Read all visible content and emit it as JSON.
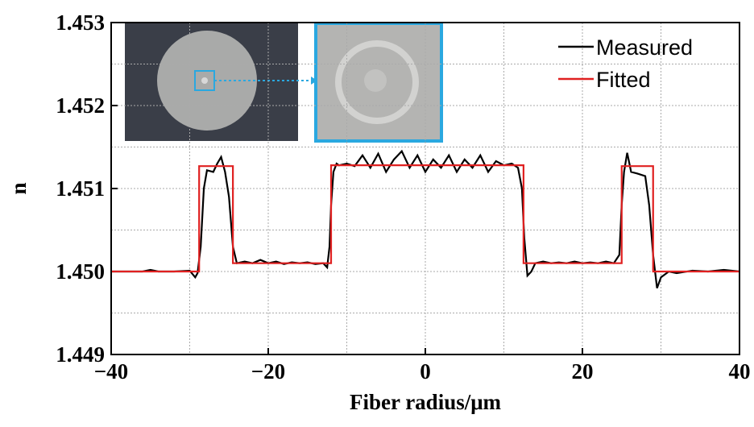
{
  "chart_data": {
    "type": "line",
    "xlabel": "Fiber radius/μm",
    "ylabel": "n",
    "xlim": [
      -40,
      40
    ],
    "ylim": [
      1.449,
      1.453
    ],
    "xticks": [
      {
        "value": -40,
        "label": "−40"
      },
      {
        "value": -20,
        "label": "−20"
      },
      0,
      20,
      40
    ],
    "yticks": [
      1.449,
      {
        "value": 1.45,
        "label": "1.450"
      },
      1.451,
      1.452,
      1.453
    ],
    "xminorticks": [
      -30,
      -10,
      10,
      30
    ],
    "yminorticks": [
      1.4495,
      1.4505,
      1.4515,
      1.4525
    ],
    "grid": true,
    "legend": "upper right",
    "series": [
      {
        "name": "Measured",
        "color": "#000000",
        "x": [
          -40,
          -38,
          -36,
          -35,
          -34,
          -32,
          -30,
          -29.3,
          -29,
          -28.6,
          -28.2,
          -27.8,
          -27,
          -26.5,
          -26,
          -25.5,
          -25,
          -24.5,
          -24,
          -23,
          -22,
          -21,
          -20,
          -19,
          -18,
          -17,
          -16,
          -15,
          -14,
          -13,
          -12.5,
          -12.2,
          -12,
          -11.7,
          -11.3,
          -11,
          -10,
          -9,
          -8,
          -7,
          -6,
          -5,
          -4,
          -3,
          -2,
          -1,
          0,
          1,
          2,
          3,
          4,
          5,
          6,
          7,
          8,
          9,
          10,
          11,
          11.8,
          12.3,
          12.6,
          13,
          13.5,
          14,
          15,
          16,
          17,
          18,
          19,
          20,
          21,
          22,
          23,
          24,
          24.7,
          25,
          25.3,
          25.7,
          26.2,
          27,
          28,
          28.5,
          29,
          29.5,
          30,
          31,
          32,
          34,
          36,
          38,
          40
        ],
        "values": [
          1.45,
          1.45,
          1.45,
          1.45002,
          1.45,
          1.45,
          1.45001,
          1.44993,
          1.44998,
          1.4503,
          1.451,
          1.45122,
          1.4512,
          1.4513,
          1.45138,
          1.4512,
          1.4509,
          1.4503,
          1.4501,
          1.45012,
          1.4501,
          1.45014,
          1.4501,
          1.45012,
          1.45009,
          1.45011,
          1.4501,
          1.45011,
          1.45009,
          1.4501,
          1.45005,
          1.4503,
          1.4508,
          1.4512,
          1.4513,
          1.45128,
          1.4513,
          1.45127,
          1.4514,
          1.45125,
          1.45142,
          1.4512,
          1.45135,
          1.45145,
          1.45125,
          1.4514,
          1.4512,
          1.45135,
          1.45125,
          1.4514,
          1.4512,
          1.45135,
          1.45125,
          1.4514,
          1.4512,
          1.45133,
          1.45128,
          1.4513,
          1.45125,
          1.451,
          1.4504,
          1.44995,
          1.45,
          1.4501,
          1.45012,
          1.4501,
          1.45011,
          1.4501,
          1.45012,
          1.4501,
          1.45011,
          1.4501,
          1.45012,
          1.4501,
          1.4502,
          1.4508,
          1.4512,
          1.45143,
          1.4512,
          1.45118,
          1.45115,
          1.4508,
          1.4502,
          1.4498,
          1.44993,
          1.45,
          1.44998,
          1.45001,
          1.45,
          1.45002,
          1.45
        ]
      },
      {
        "name": "Fitted",
        "color": "#e02020",
        "x": [
          -40,
          -28.8,
          -28.8,
          -24.5,
          -24.5,
          -12,
          -12,
          12.5,
          12.5,
          25,
          25,
          29,
          29,
          40
        ],
        "values": [
          1.45,
          1.45,
          1.45127,
          1.45127,
          1.4501,
          1.4501,
          1.45128,
          1.45128,
          1.4501,
          1.4501,
          1.45127,
          1.45127,
          1.45,
          1.45
        ]
      }
    ]
  }
}
